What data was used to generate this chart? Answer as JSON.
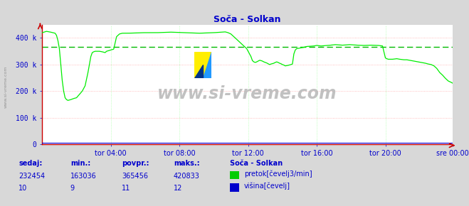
{
  "title": "Soča - Solkan",
  "title_color": "#0000cc",
  "bg_color": "#d8d8d8",
  "plot_bg_color": "#ffffff",
  "grid_color_h": "#ffaaaa",
  "grid_color_v": "#aaffaa",
  "x_labels": [
    "tor 04:00",
    "tor 08:00",
    "tor 12:00",
    "tor 16:00",
    "tor 20:00",
    "sre 00:00"
  ],
  "y_labels": [
    "0",
    "100 k",
    "200 k",
    "300 k",
    "400 k"
  ],
  "y_ticks": [
    0,
    100000,
    200000,
    300000,
    400000
  ],
  "ylim": [
    0,
    450000
  ],
  "avg_line_value": 365456,
  "avg_line_color": "#00bb00",
  "line_color": "#00ee00",
  "line_color2": "#0000dd",
  "axis_color": "#cc0000",
  "tick_color": "#0000cc",
  "watermark": "www.si-vreme.com",
  "side_label": "www.si-vreme.com",
  "table_headers": [
    "sedaj:",
    "min.:",
    "povpr.:",
    "maks.:"
  ],
  "table_row1": [
    "232454",
    "163036",
    "365456",
    "420833"
  ],
  "table_row2": [
    "10",
    "9",
    "11",
    "12"
  ],
  "legend_title": "Soča - Solkan",
  "legend_items": [
    "pretok[čevelj3/min]",
    "višina[čevelj]"
  ],
  "legend_colors": [
    "#00cc00",
    "#0000cc"
  ],
  "num_points": 288,
  "flow_keypoints": [
    [
      0,
      420000
    ],
    [
      3,
      425000
    ],
    [
      6,
      422000
    ],
    [
      9,
      418000
    ],
    [
      10,
      410000
    ],
    [
      11,
      390000
    ],
    [
      12,
      360000
    ],
    [
      13,
      300000
    ],
    [
      14,
      240000
    ],
    [
      15,
      200000
    ],
    [
      16,
      175000
    ],
    [
      17,
      168000
    ],
    [
      18,
      165000
    ],
    [
      20,
      168000
    ],
    [
      22,
      172000
    ],
    [
      24,
      175000
    ],
    [
      28,
      200000
    ],
    [
      30,
      220000
    ],
    [
      32,
      270000
    ],
    [
      34,
      330000
    ],
    [
      35,
      345000
    ],
    [
      36,
      348000
    ],
    [
      37,
      350000
    ],
    [
      40,
      350000
    ],
    [
      42,
      348000
    ],
    [
      44,
      345000
    ],
    [
      45,
      350000
    ],
    [
      48,
      355000
    ],
    [
      50,
      358000
    ],
    [
      52,
      405000
    ],
    [
      54,
      415000
    ],
    [
      56,
      418000
    ],
    [
      60,
      418000
    ],
    [
      70,
      420000
    ],
    [
      80,
      420000
    ],
    [
      90,
      422000
    ],
    [
      100,
      420000
    ],
    [
      110,
      418000
    ],
    [
      120,
      420000
    ],
    [
      125,
      422000
    ],
    [
      128,
      423000
    ],
    [
      130,
      420000
    ],
    [
      132,
      415000
    ],
    [
      134,
      405000
    ],
    [
      136,
      395000
    ],
    [
      138,
      385000
    ],
    [
      140,
      375000
    ],
    [
      141,
      370000
    ],
    [
      142,
      365000
    ],
    [
      143,
      360000
    ],
    [
      144,
      350000
    ],
    [
      145,
      340000
    ],
    [
      146,
      330000
    ],
    [
      147,
      315000
    ],
    [
      148,
      310000
    ],
    [
      149,
      308000
    ],
    [
      150,
      310000
    ],
    [
      151,
      313000
    ],
    [
      152,
      316000
    ],
    [
      153,
      315000
    ],
    [
      154,
      313000
    ],
    [
      155,
      310000
    ],
    [
      156,
      308000
    ],
    [
      157,
      306000
    ],
    [
      158,
      303000
    ],
    [
      159,
      300000
    ],
    [
      160,
      302000
    ],
    [
      162,
      305000
    ],
    [
      163,
      308000
    ],
    [
      164,
      310000
    ],
    [
      165,
      308000
    ],
    [
      166,
      305000
    ],
    [
      167,
      303000
    ],
    [
      168,
      300000
    ],
    [
      169,
      298000
    ],
    [
      170,
      295000
    ],
    [
      172,
      297000
    ],
    [
      174,
      300000
    ],
    [
      175,
      302000
    ],
    [
      176,
      340000
    ],
    [
      177,
      355000
    ],
    [
      178,
      360000
    ],
    [
      180,
      362000
    ],
    [
      183,
      365000
    ],
    [
      185,
      368000
    ],
    [
      190,
      370000
    ],
    [
      192,
      372000
    ],
    [
      195,
      370000
    ],
    [
      200,
      372000
    ],
    [
      205,
      375000
    ],
    [
      210,
      373000
    ],
    [
      215,
      375000
    ],
    [
      220,
      373000
    ],
    [
      225,
      372000
    ],
    [
      230,
      373000
    ],
    [
      235,
      372000
    ],
    [
      238,
      370000
    ],
    [
      240,
      325000
    ],
    [
      241,
      322000
    ],
    [
      242,
      320000
    ],
    [
      245,
      320000
    ],
    [
      248,
      322000
    ],
    [
      250,
      320000
    ],
    [
      253,
      318000
    ],
    [
      255,
      318000
    ],
    [
      258,
      315000
    ],
    [
      260,
      313000
    ],
    [
      263,
      310000
    ],
    [
      265,
      308000
    ],
    [
      268,
      305000
    ],
    [
      270,
      302000
    ],
    [
      272,
      300000
    ],
    [
      274,
      295000
    ],
    [
      276,
      285000
    ],
    [
      278,
      270000
    ],
    [
      280,
      260000
    ],
    [
      282,
      248000
    ],
    [
      284,
      238000
    ],
    [
      286,
      233000
    ],
    [
      287,
      230000
    ]
  ]
}
